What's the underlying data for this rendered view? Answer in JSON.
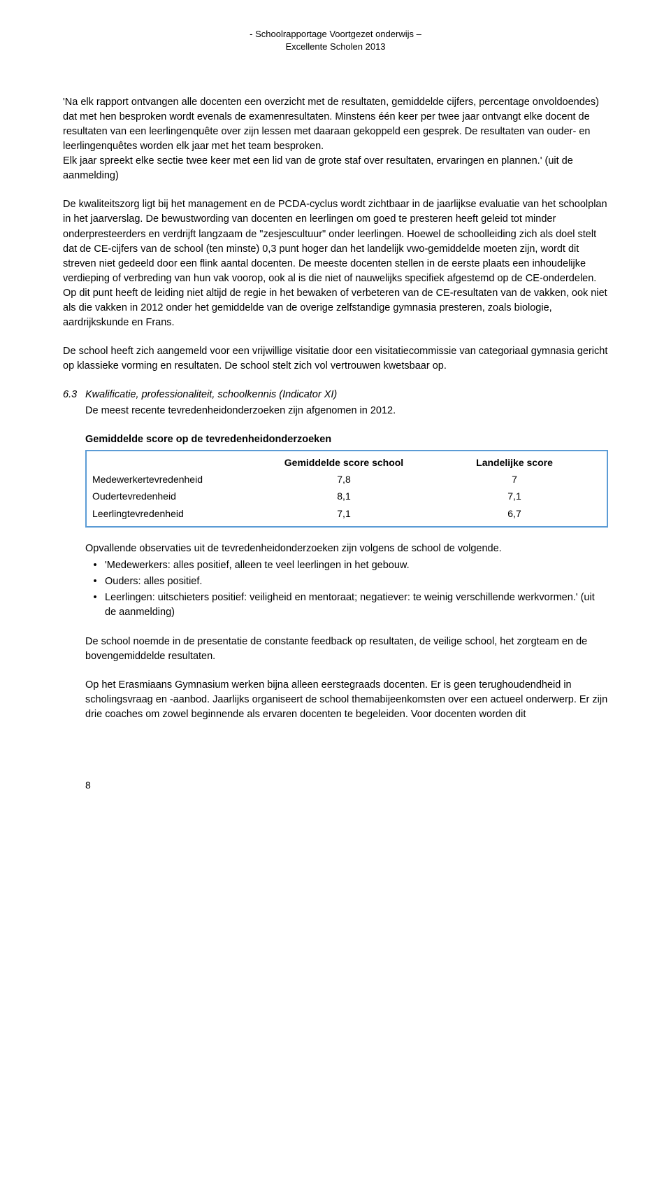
{
  "header": {
    "line1": "- Schoolrapportage Voortgezet onderwijs –",
    "line2": "Excellente Scholen 2013"
  },
  "para1": "'Na elk rapport ontvangen alle docenten een overzicht met de resultaten, gemiddelde cijfers, percentage onvoldoendes) dat met hen besproken wordt evenals de examenresultaten. Minstens één keer per twee jaar ontvangt elke docent de resultaten van een leerlingenquête over zijn lessen met daaraan gekoppeld een gesprek. De resultaten van ouder- en leerlingenquêtes worden elk jaar met het team besproken.",
  "para1b": "Elk jaar spreekt elke sectie twee keer met een lid van de grote staf over resultaten, ervaringen en plannen.' (uit de aanmelding)",
  "para2": "De kwaliteitszorg ligt bij het management en de PCDA-cyclus wordt zichtbaar in de jaarlijkse evaluatie van het schoolplan in het jaarverslag. De bewustwording van docenten en leerlingen om goed te presteren heeft geleid tot minder onderpresteerders en verdrijft langzaam de \"zesjescultuur\" onder leerlingen. Hoewel de schoolleiding zich als doel stelt dat de CE-cijfers van de school (ten minste) 0,3 punt hoger dan het landelijk vwo-gemiddelde moeten zijn, wordt dit streven niet gedeeld door een flink aantal docenten. De meeste docenten stellen in de eerste plaats een inhoudelijke verdieping of verbreding van hun vak voorop, ook al is die niet of nauwelijks specifiek afgestemd op de CE-onderdelen. Op dit punt heeft de leiding niet altijd de regie in het bewaken of verbeteren van de CE-resultaten van de vakken, ook niet als die vakken in 2012 onder het gemiddelde van de overige zelfstandige gymnasia presteren, zoals biologie, aardrijkskunde en Frans.",
  "para3": "De school heeft zich aangemeld voor een vrijwillige visitatie door een visitatiecommissie van categoriaal gymnasia gericht op klassieke vorming en resultaten. De school stelt zich vol vertrouwen kwetsbaar op.",
  "section": {
    "num": "6.3",
    "title": "Kwalificatie, professionaliteit, schoolkennis (Indicator XI)",
    "sub": "De meest recente tevredenheidonderzoeken zijn afgenomen in 2012."
  },
  "table": {
    "heading": "Gemiddelde score op de tevredenheidonderzoeken",
    "border_color": "#5b9bd5",
    "cols": {
      "label": "",
      "school": "Gemiddelde score school",
      "national": "Landelijke score"
    },
    "rows": [
      {
        "label": "Medewerkertevredenheid",
        "school": "7,8",
        "national": "7"
      },
      {
        "label": "Oudertevredenheid",
        "school": "8,1",
        "national": "7,1"
      },
      {
        "label": "Leerlingtevredenheid",
        "school": "7,1",
        "national": "6,7"
      }
    ]
  },
  "obs": {
    "intro": "Opvallende observaties uit de tevredenheidonderzoeken zijn volgens de school de volgende.",
    "items": [
      "'Medewerkers: alles positief, alleen te veel leerlingen in het gebouw.",
      "Ouders: alles positief.",
      "Leerlingen: uitschieters positief: veiligheid en mentoraat; negatiever: te weinig verschillende werkvormen.' (uit de aanmelding)"
    ]
  },
  "para4": "De school noemde in de presentatie de constante feedback op resultaten, de veilige school, het zorgteam en de bovengemiddelde resultaten.",
  "para5": "Op het Erasmiaans Gymnasium werken bijna alleen eerstegraads docenten. Er is geen terughoudendheid in scholingsvraag en -aanbod. Jaarlijks organiseert de school themabijeenkomsten over een actueel onderwerp. Er zijn drie coaches om zowel beginnende als ervaren docenten te begeleiden. Voor docenten worden dit",
  "page_number": "8"
}
